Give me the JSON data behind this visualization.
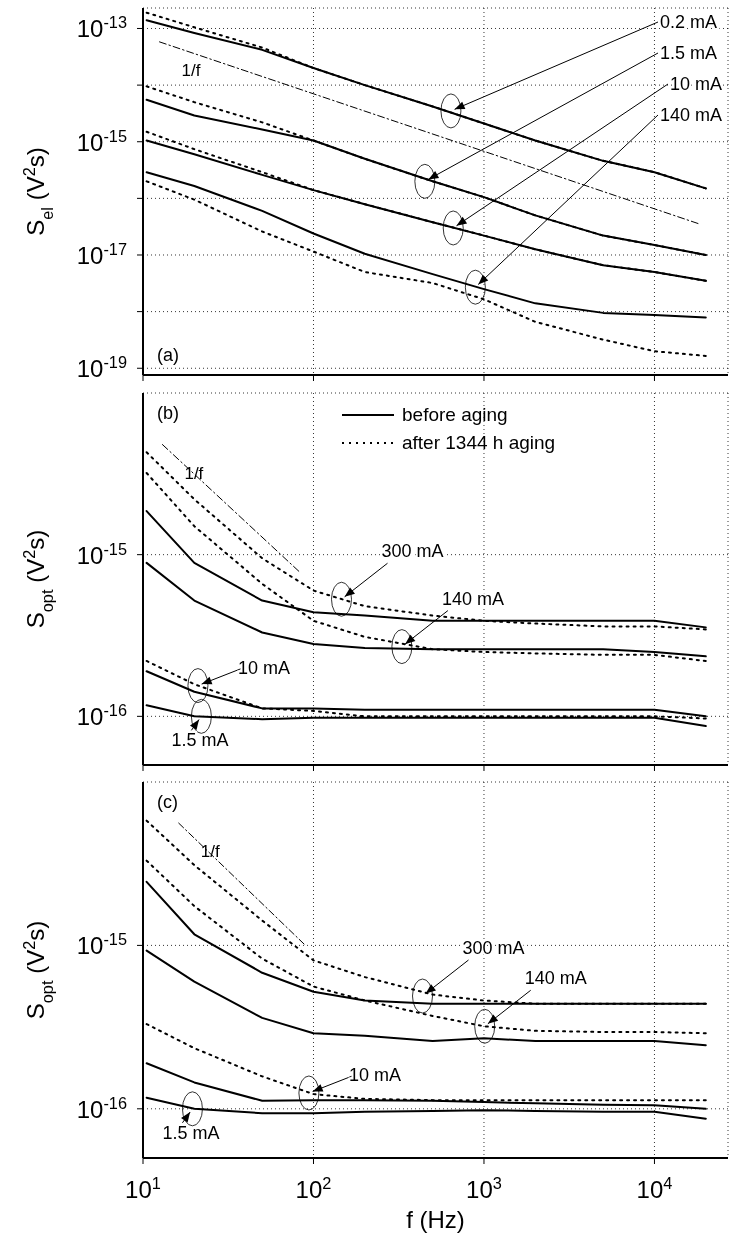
{
  "chart_data": [
    {
      "type": "line",
      "ylabel": "S$_{el}$ (V$^{2}$s)",
      "log": "xy",
      "grid": true,
      "tick_labels": "y",
      "xlim": [
        10,
        27000
      ],
      "xticks": [
        10,
        100,
        1000,
        10000
      ],
      "ylim": [
        7.6e-20,
        2.3e-13
      ],
      "yticks": [
        {
          "value": 1e-19,
          "label": "10$^{-19}$"
        },
        {
          "value": 1e-18,
          "label": null
        },
        {
          "value": 1e-17,
          "label": "10$^{-17}$"
        },
        {
          "value": 1e-16,
          "label": null
        },
        {
          "value": 1e-15,
          "label": "10$^{-15}$"
        },
        {
          "value": 1e-14,
          "label": null
        },
        {
          "value": 1e-13,
          "label": "10$^{-13}$"
        }
      ],
      "x": [
        10.5,
        20,
        50,
        100,
        200,
        500,
        1000,
        2000,
        5000,
        10000,
        20000
      ],
      "series": [
        {
          "color": "#000000",
          "line_style": "solid",
          "values": [
            1.4e-13,
            8.3e-14,
            4.2e-14,
            2e-14,
            1e-14,
            4.2e-15,
            2.1e-15,
            1.05e-15,
            4.6e-16,
            2.9e-16,
            1.5e-16
          ]
        },
        {
          "color": "#000000",
          "line_style": "dotted",
          "values": [
            1.9e-13,
            1.05e-13,
            4.6e-14,
            2e-14,
            1e-14,
            4.2e-15,
            2.1e-15,
            1.05e-15,
            4.6e-16,
            2.9e-16,
            1.5e-16
          ]
        },
        {
          "color": "#000000",
          "line_style": "solid",
          "values": [
            5.5e-15,
            2.9e-15,
            1.65e-15,
            1.05e-15,
            5e-16,
            2e-16,
            1.05e-16,
            5e-17,
            2.2e-17,
            1.5e-17,
            1e-17
          ]
        },
        {
          "color": "#000000",
          "line_style": "dotted",
          "values": [
            9.5e-15,
            5e-15,
            2.2e-15,
            1.05e-15,
            5e-16,
            2e-16,
            1.05e-16,
            5e-17,
            2.2e-17,
            1.5e-17,
            1e-17
          ]
        },
        {
          "color": "#000000",
          "line_style": "solid",
          "values": [
            1.05e-15,
            6e-16,
            2.6e-16,
            1.4e-16,
            7.9e-17,
            3.8e-17,
            2.2e-17,
            1.26e-17,
            6.6e-18,
            5e-18,
            3.5e-18
          ]
        },
        {
          "color": "#000000",
          "line_style": "dotted",
          "values": [
            1.5e-15,
            7.4e-16,
            2.9e-16,
            1.4e-16,
            7.9e-17,
            3.8e-17,
            2.2e-17,
            1.26e-17,
            6.6e-18,
            5e-18,
            3.5e-18
          ]
        },
        {
          "color": "#000000",
          "line_style": "solid",
          "values": [
            2.9e-16,
            1.65e-16,
            6e-17,
            2.4e-17,
            1.05e-17,
            4.6e-18,
            2.5e-18,
            1.4e-18,
            9.5e-19,
            8.7e-19,
            7.9e-19
          ]
        },
        {
          "color": "#000000",
          "line_style": "dotted",
          "values": [
            2e-16,
            9.5e-17,
            2.6e-17,
            1.15e-17,
            5e-18,
            3.2e-18,
            1.65e-18,
            6.6e-19,
            3.2e-19,
            2e-19,
            1.65e-19
          ]
        },
        {
          "name": "1/f",
          "color": "#000000",
          "line_style": "dashed",
          "x": [
            12.5,
            18000
          ],
          "values": [
            5.8e-14,
            3.6e-17
          ]
        }
      ],
      "annotations": [
        "(a)",
        {
          "text": "0.2 mA",
          "x": 640,
          "y": 3.5e-15
        },
        {
          "text": "1.5 mA",
          "x": 450,
          "y": 2e-16
        },
        {
          "text": "10 mA",
          "x": 660,
          "y": 3e-17
        },
        {
          "text": "140 mA",
          "x": 890,
          "y": 2.7e-18
        }
      ]
    },
    {
      "type": "line",
      "ylabel": "S$_{opt}$ (V$^{2}$s)",
      "log": "xy",
      "grid": true,
      "tick_labels": "y",
      "legend": "top",
      "xlim": [
        10,
        27000
      ],
      "xticks": [
        10,
        100,
        1000,
        10000
      ],
      "ylim": [
        5e-17,
        1e-14
      ],
      "yticks": [
        {
          "value": 1e-16,
          "label": "10$^{-16}$"
        },
        {
          "value": 1e-15,
          "label": "10$^{-15}$"
        }
      ],
      "x": [
        10.5,
        20,
        50,
        100,
        200,
        500,
        1000,
        2000,
        5000,
        10000,
        20000
      ],
      "series": [
        {
          "name": "before aging",
          "color": "#000000",
          "line_style": "solid",
          "values": [
            1.86e-15,
            8.9e-16,
            5.2e-16,
            4.4e-16,
            4.2e-16,
            3.9e-16,
            3.9e-16,
            3.9e-16,
            3.9e-16,
            3.9e-16,
            3.55e-16
          ]
        },
        {
          "name": "after 1344 h aging",
          "color": "#000000",
          "line_style": "dotted",
          "values": [
            4.3e-15,
            2.2e-15,
            9.5e-16,
            6e-16,
            4.8e-16,
            4.2e-16,
            3.9e-16,
            3.75e-16,
            3.6e-16,
            3.6e-16,
            3.45e-16
          ]
        },
        {
          "color": "#000000",
          "line_style": "solid",
          "values": [
            8.9e-16,
            5.2e-16,
            3.3e-16,
            2.8e-16,
            2.65e-16,
            2.6e-16,
            2.6e-16,
            2.6e-16,
            2.6e-16,
            2.5e-16,
            2.35e-16
          ]
        },
        {
          "color": "#000000",
          "line_style": "dotted",
          "values": [
            3.2e-15,
            1.5e-15,
            6.6e-16,
            3.9e-16,
            3.1e-16,
            2.6e-16,
            2.5e-16,
            2.45e-16,
            2.4e-16,
            2.4e-16,
            2.2e-16
          ]
        },
        {
          "color": "#000000",
          "line_style": "solid",
          "values": [
            1.9e-16,
            1.42e-16,
            1.12e-16,
            1.12e-16,
            1.1e-16,
            1.1e-16,
            1.1e-16,
            1.1e-16,
            1.1e-16,
            1.1e-16,
            1e-16
          ]
        },
        {
          "color": "#000000",
          "line_style": "dotted",
          "values": [
            2.2e-16,
            1.58e-16,
            1.12e-16,
            1.08e-16,
            1e-16,
            1e-16,
            1e-16,
            1e-16,
            1e-16,
            1e-16,
            9.7e-17
          ]
        },
        {
          "color": "#000000",
          "line_style": "solid",
          "values": [
            1.17e-16,
            1e-16,
            9.6e-17,
            9.8e-17,
            9.8e-17,
            9.8e-17,
            9.8e-17,
            9.8e-17,
            9.8e-17,
            9.8e-17,
            8.7e-17
          ]
        },
        {
          "name": "1/f",
          "color": "#000000",
          "line_style": "dashed",
          "x": [
            13,
            82
          ],
          "values": [
            4.8e-15,
            7.9e-16
          ]
        }
      ],
      "annotations": [
        "(b)",
        {
          "text": "300 mA",
          "x": 146,
          "y": 5.3e-16
        },
        {
          "text": "140 mA",
          "x": 330,
          "y": 2.7e-16
        },
        {
          "text": "10 mA",
          "x": 21,
          "y": 1.55e-16
        },
        {
          "text": "1.5 mA",
          "x": 22,
          "y": 1e-16
        }
      ]
    },
    {
      "type": "line",
      "ylabel": "S$_{opt}$ (V$^{2}$s)",
      "xlabel": "f (Hz)",
      "log": "xy",
      "grid": true,
      "xlim": [
        10,
        27000
      ],
      "xticks": [
        {
          "value": 10,
          "label": "10$^{1}$"
        },
        {
          "value": 100,
          "label": "10$^{2}$"
        },
        {
          "value": 1000,
          "label": "10$^{3}$"
        },
        {
          "value": 10000,
          "label": "10$^{4}$"
        }
      ],
      "ylim": [
        5e-17,
        1e-14
      ],
      "yticks": [
        {
          "value": 1e-16,
          "label": "10$^{-16}$"
        },
        {
          "value": 1e-15,
          "label": "10$^{-15}$"
        }
      ],
      "x": [
        10.5,
        20,
        50,
        100,
        200,
        500,
        1000,
        2000,
        5000,
        10000,
        20000
      ],
      "series": [
        {
          "color": "#000000",
          "line_style": "solid",
          "values": [
            2.45e-15,
            1.17e-15,
            6.8e-16,
            5.2e-16,
            4.6e-16,
            4.4e-16,
            4.4e-16,
            4.4e-16,
            4.4e-16,
            4.4e-16,
            4.4e-16
          ]
        },
        {
          "color": "#000000",
          "line_style": "dotted",
          "values": [
            5.8e-15,
            3.1e-15,
            1.42e-15,
            8.1e-16,
            6.4e-16,
            5e-16,
            4.6e-16,
            4.4e-16,
            4.4e-16,
            4.4e-16,
            4.4e-16
          ]
        },
        {
          "color": "#000000",
          "line_style": "solid",
          "values": [
            9.3e-16,
            6e-16,
            3.6e-16,
            2.9e-16,
            2.8e-16,
            2.6e-16,
            2.7e-16,
            2.6e-16,
            2.6e-16,
            2.6e-16,
            2.45e-16
          ]
        },
        {
          "color": "#000000",
          "line_style": "dotted",
          "values": [
            3.3e-15,
            1.74e-15,
            8.3e-16,
            5.6e-16,
            4.6e-16,
            3.7e-16,
            3.2e-16,
            3e-16,
            2.95e-16,
            2.95e-16,
            2.9e-16
          ]
        },
        {
          "color": "#000000",
          "line_style": "solid",
          "values": [
            1.9e-16,
            1.45e-16,
            1.12e-16,
            1.13e-16,
            1.13e-16,
            1.12e-16,
            1.1e-16,
            1.08e-16,
            1.06e-16,
            1.05e-16,
            1e-16
          ]
        },
        {
          "color": "#000000",
          "line_style": "dotted",
          "values": [
            3.3e-16,
            2.35e-16,
            1.58e-16,
            1.23e-16,
            1.15e-16,
            1.13e-16,
            1.13e-16,
            1.13e-16,
            1.13e-16,
            1.13e-16,
            1.13e-16
          ]
        },
        {
          "color": "#000000",
          "line_style": "solid",
          "values": [
            1.17e-16,
            1e-16,
            9.4e-17,
            9.4e-17,
            9.6e-17,
            9.7e-17,
            9.8e-17,
            9.7e-17,
            9.6e-17,
            9.6e-17,
            8.7e-17
          ]
        },
        {
          "name": "1/f",
          "color": "#000000",
          "line_style": "dashed",
          "x": [
            16.2,
            88
          ],
          "values": [
            5.6e-15,
            1.02e-15
          ]
        }
      ],
      "annotations": [
        "(c)",
        {
          "text": "300 mA",
          "x": 436,
          "y": 4.9e-16
        },
        {
          "text": "140 mA",
          "x": 1010,
          "y": 3.2e-16
        },
        {
          "text": "10 mA",
          "x": 94,
          "y": 1.25e-16
        },
        {
          "text": "1.5 mA",
          "x": 19.5,
          "y": 1e-16
        }
      ]
    }
  ]
}
